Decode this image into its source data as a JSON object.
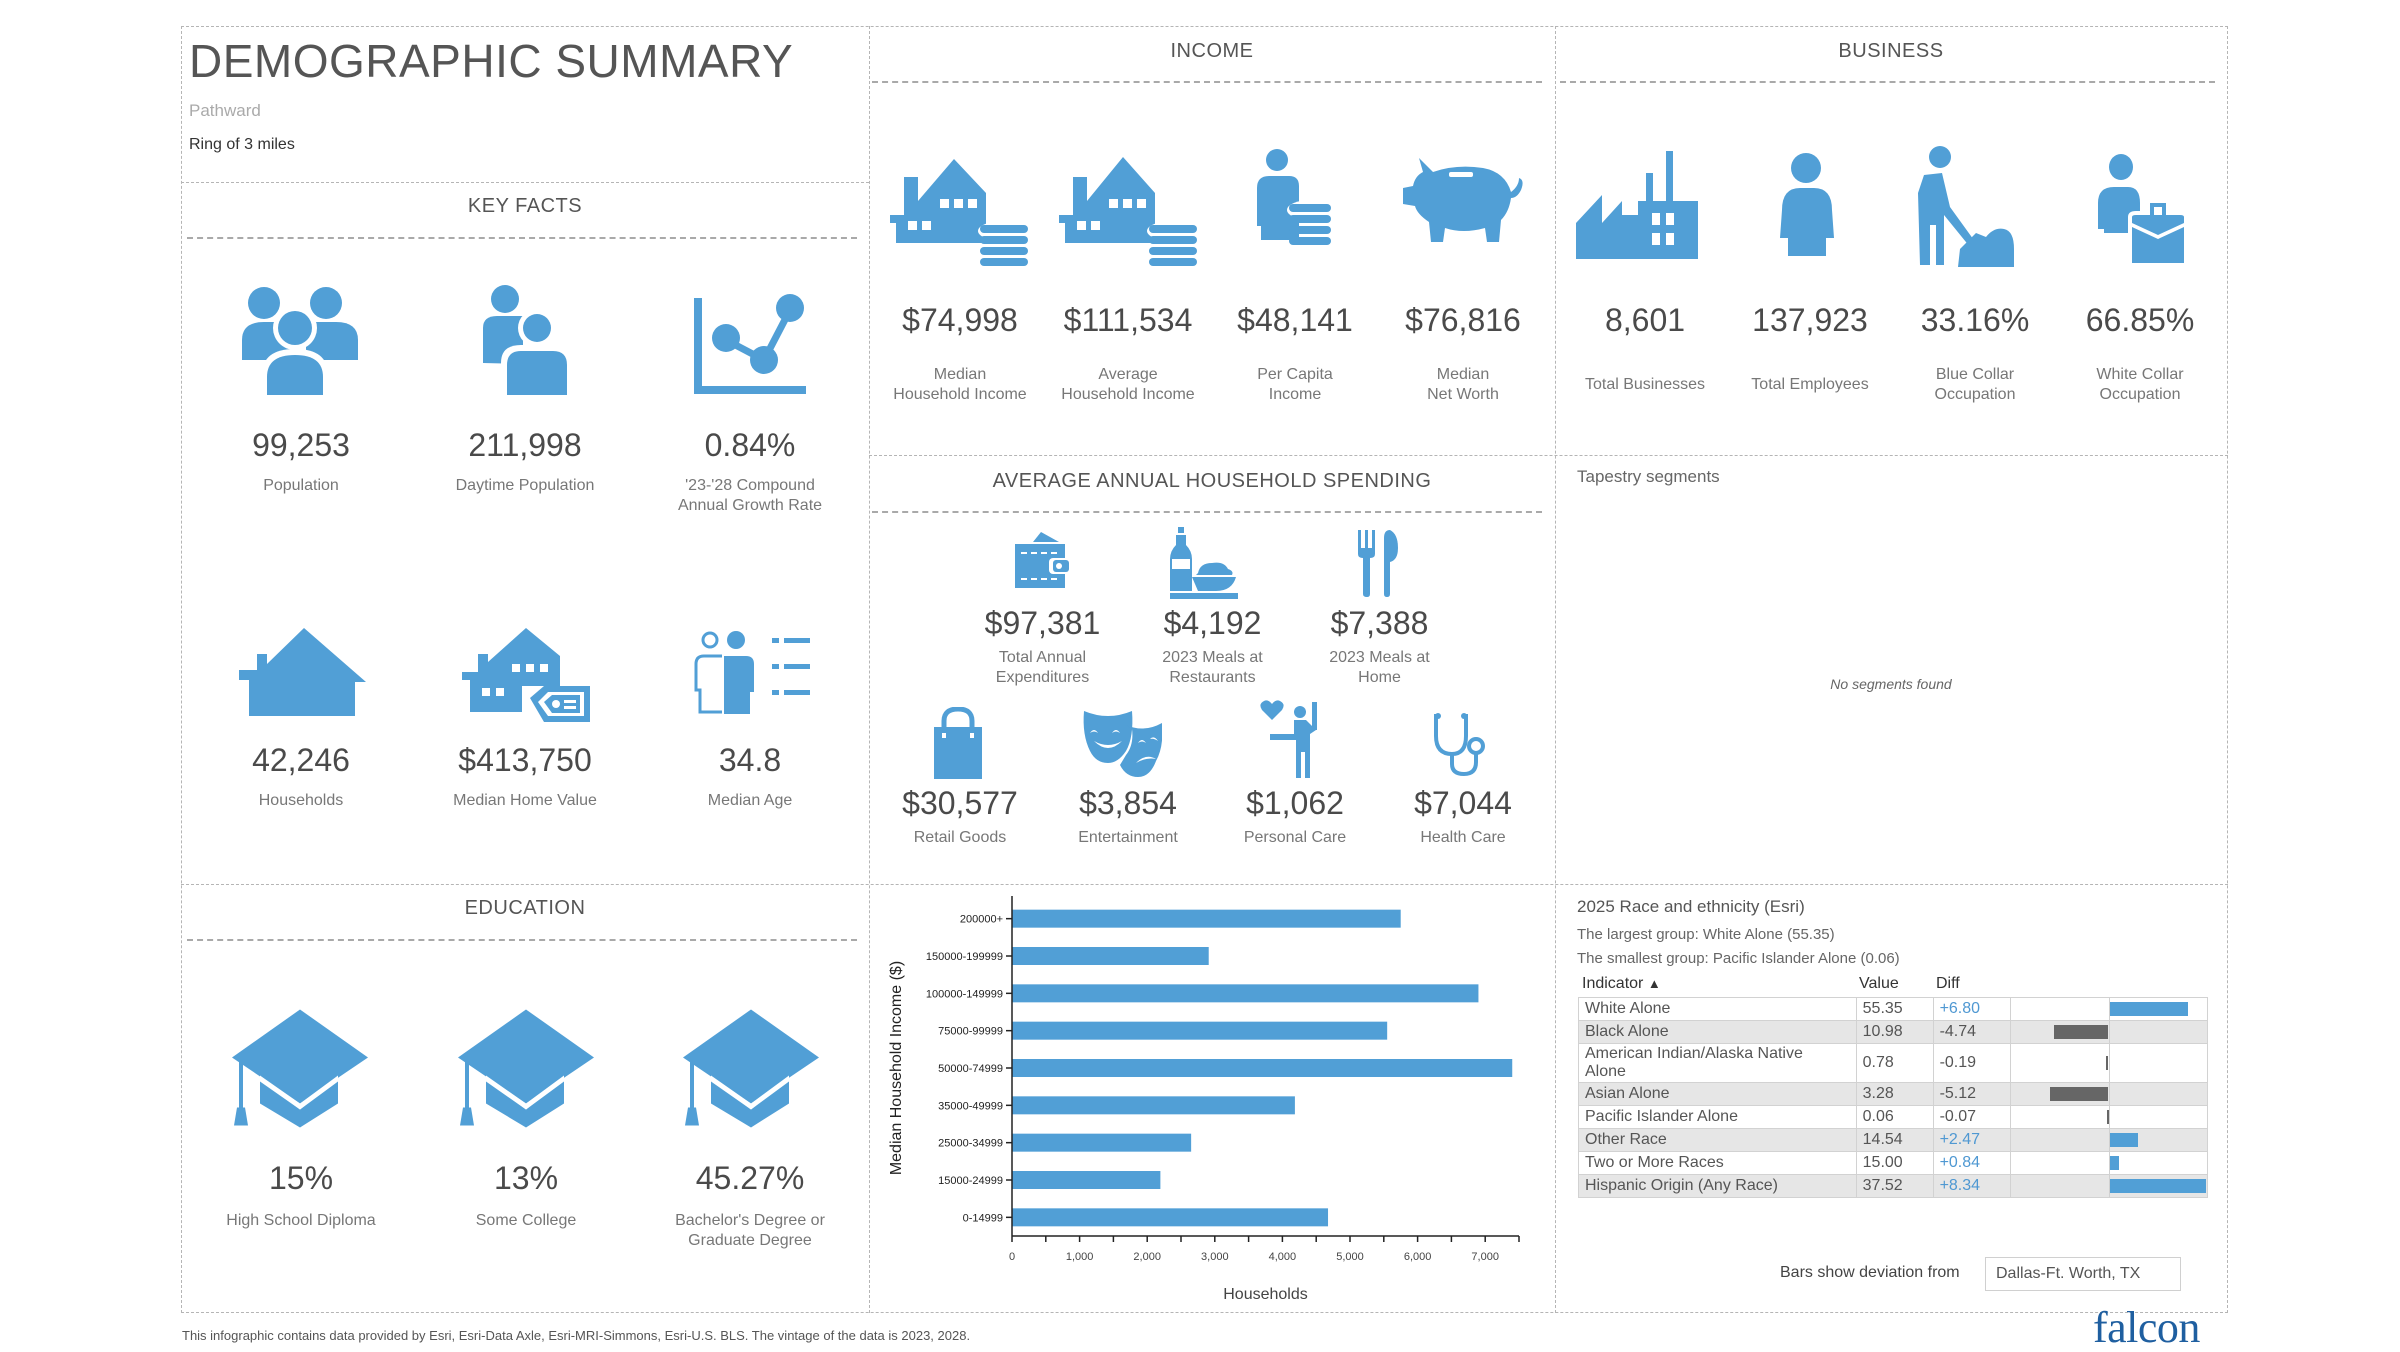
{
  "header": {
    "title": "DEMOGRAPHIC SUMMARY",
    "site_name": "Pathward",
    "area": "Ring of 3 miles"
  },
  "key_facts": {
    "title": "KEY FACTS",
    "items": [
      {
        "value": "99,253",
        "label": "Population",
        "icon": "population-icon"
      },
      {
        "value": "211,998",
        "label": "Daytime Population",
        "icon": "daytime-population-icon"
      },
      {
        "value": "0.84%",
        "label": "'23-'28 Compound\nAnnual Growth Rate",
        "icon": "growth-chart-icon"
      },
      {
        "value": "42,246",
        "label": "Households",
        "icon": "house-icon"
      },
      {
        "value": "$413,750",
        "label": "Median Home Value",
        "icon": "home-value-icon"
      },
      {
        "value": "34.8",
        "label": "Median Age",
        "icon": "median-age-icon"
      }
    ]
  },
  "income": {
    "title": "INCOME",
    "items": [
      {
        "value": "$74,998",
        "label": "Median\nHousehold Income",
        "icon": "house-coins-icon"
      },
      {
        "value": "$111,534",
        "label": "Average\nHousehold Income",
        "icon": "house-coins-icon"
      },
      {
        "value": "$48,141",
        "label": "Per Capita\nIncome",
        "icon": "person-coins-icon"
      },
      {
        "value": "$76,816",
        "label": "Median\nNet Worth",
        "icon": "piggy-bank-icon"
      }
    ]
  },
  "business": {
    "title": "BUSINESS",
    "items": [
      {
        "value": "8,601",
        "label": "Total Businesses",
        "icon": "factory-icon"
      },
      {
        "value": "137,923",
        "label": "Total Employees",
        "icon": "employee-icon"
      },
      {
        "value": "33.16%",
        "label": "Blue Collar\nOccupation",
        "icon": "blue-collar-worker-icon"
      },
      {
        "value": "66.85%",
        "label": "White Collar\nOccupation",
        "icon": "white-collar-briefcase-icon"
      }
    ]
  },
  "spending": {
    "title": "AVERAGE ANNUAL HOUSEHOLD SPENDING",
    "items": [
      {
        "value": "$97,381",
        "label": "Total Annual\nExpenditures",
        "icon": "wallet-icon"
      },
      {
        "value": "$4,192",
        "label": "2023 Meals at\nRestaurants",
        "icon": "restaurant-meal-icon"
      },
      {
        "value": "$7,388",
        "label": "2023 Meals at\nHome",
        "icon": "fork-knife-icon"
      },
      {
        "value": "$30,577",
        "label": "Retail Goods",
        "icon": "shopping-bag-icon"
      },
      {
        "value": "$3,854",
        "label": "Entertainment",
        "icon": "theater-masks-icon"
      },
      {
        "value": "$1,062",
        "label": "Personal Care",
        "icon": "personal-care-icon"
      },
      {
        "value": "$7,044",
        "label": "Health Care",
        "icon": "stethoscope-icon"
      }
    ]
  },
  "tapestry": {
    "title": "Tapestry segments",
    "empty_message": "No segments found"
  },
  "education": {
    "title": "EDUCATION",
    "items": [
      {
        "value": "15%",
        "label": "High School Diploma",
        "icon": "graduation-cap-icon"
      },
      {
        "value": "13%",
        "label": "Some College",
        "icon": "graduation-cap-icon"
      },
      {
        "value": "45.27%",
        "label": "Bachelor's Degree or\nGraduate Degree",
        "icon": "graduation-cap-icon"
      }
    ]
  },
  "chart_data": {
    "type": "bar",
    "orientation": "horizontal",
    "title": "",
    "xlabel": "Households",
    "ylabel": "Median Household Income ($)",
    "categories": [
      "200000+",
      "150000-199999",
      "100000-149999",
      "75000-99999",
      "50000-74999",
      "35000-49999",
      "25000-34999",
      "15000-24999",
      "0-14999"
    ],
    "values": [
      5750,
      2910,
      6900,
      5550,
      7400,
      4185,
      2650,
      2195,
      4675
    ],
    "xlim": [
      0,
      7500
    ],
    "xticks": [
      0,
      1000,
      2000,
      3000,
      4000,
      5000,
      6000,
      7000
    ],
    "xtick_labels": [
      "0",
      "1,000",
      "2,000",
      "3,000",
      "4,000",
      "5,000",
      "6,000",
      "7,000"
    ],
    "grid": false,
    "legend": "none",
    "bar_color": "#519fd6"
  },
  "race": {
    "title": "2025 Race and ethnicity (Esri)",
    "largest": "The largest group: White Alone (55.35)",
    "smallest": "The smallest group: Pacific Islander Alone (0.06)",
    "columns": [
      "Indicator",
      "Value",
      "Diff"
    ],
    "sort_indicator": "▲",
    "rows": [
      {
        "indicator": "White Alone",
        "value": "55.35",
        "diff": "+6.80",
        "diff_num": 6.8
      },
      {
        "indicator": "Black Alone",
        "value": "10.98",
        "diff": "-4.74",
        "diff_num": -4.74
      },
      {
        "indicator": "American Indian/Alaska Native Alone",
        "value": "0.78",
        "diff": "-0.19",
        "diff_num": -0.19
      },
      {
        "indicator": "Asian Alone",
        "value": "3.28",
        "diff": "-5.12",
        "diff_num": -5.12
      },
      {
        "indicator": "Pacific Islander Alone",
        "value": "0.06",
        "diff": "-0.07",
        "diff_num": -0.07
      },
      {
        "indicator": "Other Race",
        "value": "14.54",
        "diff": "+2.47",
        "diff_num": 2.47
      },
      {
        "indicator": "Two or More Races",
        "value": "15.00",
        "diff": "+0.84",
        "diff_num": 0.84
      },
      {
        "indicator": "Hispanic Origin (Any Race)",
        "value": "37.52",
        "diff": "+8.34",
        "diff_num": 8.34
      }
    ],
    "deviation_label": "Bars show deviation from",
    "deviation_region": "Dallas-Ft. Worth, TX",
    "positive_color": "#519fd6",
    "negative_color": "#666666"
  },
  "footer": {
    "source_note": "This infographic contains data provided by Esri, Esri-Data Axle, Esri-MRI-Simmons, Esri-U.S. BLS. The vintage of the data is 2023, 2028.",
    "logo": "falcon",
    "logo_color": "#1f5fa0"
  }
}
